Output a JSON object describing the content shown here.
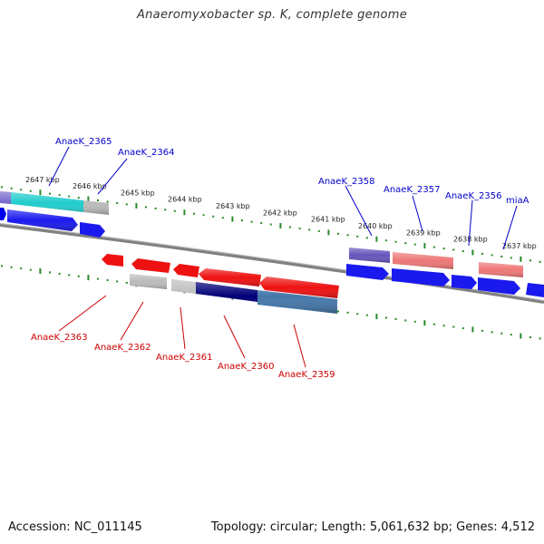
{
  "title": "Anaeromyxobacter sp. K, complete genome",
  "footer": {
    "accession": "Accession: NC_011145",
    "summary": "Topology: circular; Length: 5,061,632 bp; Genes: 4,512"
  },
  "ruler": {
    "tick_labels": [
      "2647 kbp",
      "2646 kbp",
      "2645 kbp",
      "2644 kbp",
      "2643 kbp",
      "2642 kbp",
      "2641 kbp",
      "2640 kbp",
      "2639 kbp",
      "2638 kbp",
      "2637 kbp"
    ]
  },
  "colors": {
    "forward_label": "#0000cc",
    "reverse_label": "#cc0000",
    "tick": "#2a8a2a",
    "backbone": "#888888"
  },
  "genes": {
    "top": [
      "AnaeK_2365",
      "AnaeK_2364",
      "AnaeK_2358",
      "AnaeK_2357",
      "AnaeK_2356",
      "miaA"
    ],
    "bottom": [
      "AnaeK_2363",
      "AnaeK_2362",
      "AnaeK_2361",
      "AnaeK_2360",
      "AnaeK_2359"
    ]
  }
}
